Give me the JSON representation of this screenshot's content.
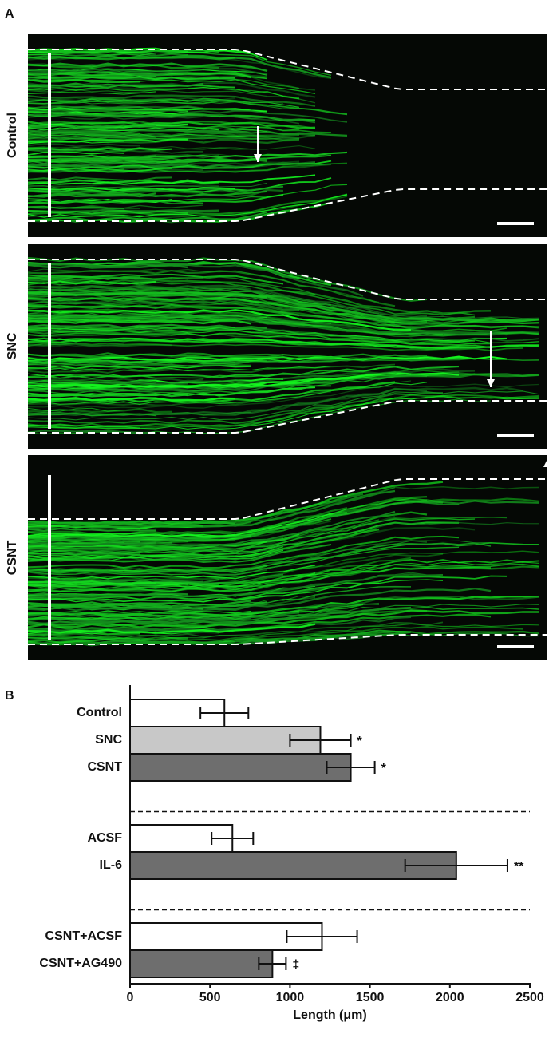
{
  "panel_a": {
    "label": "A",
    "rows": [
      "Control",
      "SNC",
      "CSNT"
    ]
  },
  "chart_data": {
    "type": "hbar",
    "label": "B",
    "xlabel": "Length (μm)",
    "xlim": [
      0,
      2500
    ],
    "xticks": [
      0,
      500,
      1000,
      1500,
      2000,
      2500
    ],
    "groups": [
      {
        "categories": [
          "Control",
          "SNC",
          "CSNT"
        ],
        "values": [
          590,
          1190,
          1380
        ],
        "errors": [
          150,
          190,
          150
        ],
        "colors": [
          "#ffffff",
          "#c8c8c8",
          "#6e6e6e"
        ],
        "significance": [
          null,
          "*",
          "*"
        ]
      },
      {
        "categories": [
          "ACSF",
          "IL-6"
        ],
        "values": [
          640,
          2040
        ],
        "errors": [
          130,
          320
        ],
        "colors": [
          "#ffffff",
          "#6e6e6e"
        ],
        "significance": [
          null,
          "**"
        ]
      },
      {
        "categories": [
          "CSNT+ACSF",
          "CSNT+AG490"
        ],
        "values": [
          1200,
          890
        ],
        "errors": [
          220,
          85
        ],
        "colors": [
          "#ffffff",
          "#6e6e6e"
        ],
        "significance": [
          null,
          "‡"
        ]
      }
    ]
  }
}
